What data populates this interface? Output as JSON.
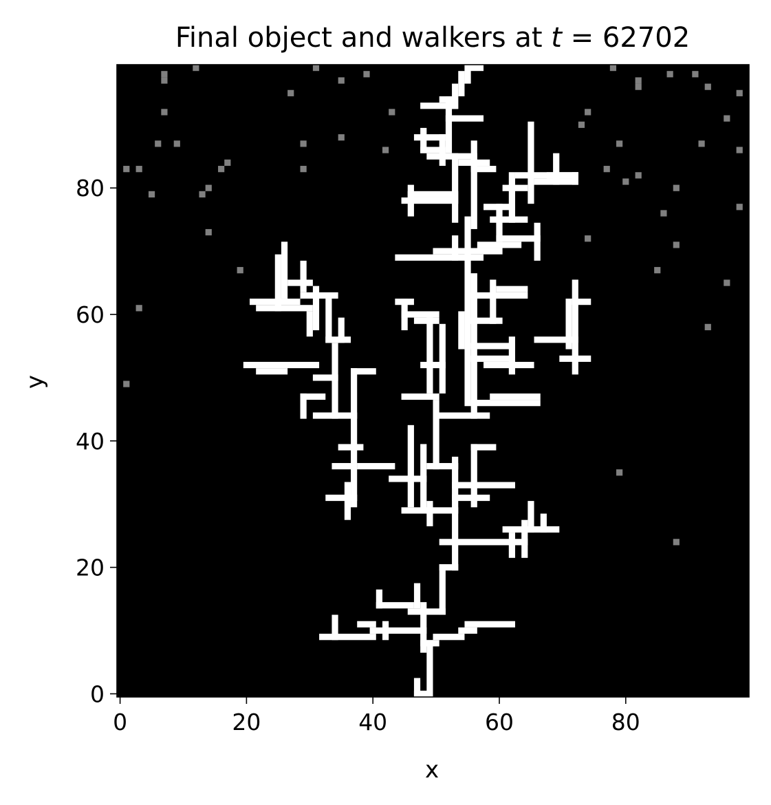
{
  "chart_data": {
    "type": "heatmap",
    "title_prefix": "Final object and walkers at ",
    "title_var": "t",
    "title_eq": " = 62702",
    "xlabel": "x",
    "ylabel": "y",
    "xlim": [
      -0.5,
      99.5
    ],
    "ylim": [
      -0.5,
      99.5
    ],
    "x_ticks": [
      0,
      20,
      40,
      60,
      80
    ],
    "y_ticks": [
      0,
      20,
      40,
      60,
      80
    ],
    "colors": {
      "background": "#000000",
      "object": "#ffffff",
      "walker": "#808080"
    },
    "object_segments": [
      {
        "orient": "v",
        "fixed": 49,
        "from": 0,
        "to": 8
      },
      {
        "orient": "v",
        "fixed": 47,
        "from": 0,
        "to": 2
      },
      {
        "orient": "h",
        "fixed": 0,
        "from": 47,
        "to": 49
      },
      {
        "orient": "v",
        "fixed": 48,
        "from": 7,
        "to": 14
      },
      {
        "orient": "h",
        "fixed": 8,
        "from": 48,
        "to": 50
      },
      {
        "orient": "h",
        "fixed": 9,
        "from": 50,
        "to": 54
      },
      {
        "orient": "h",
        "fixed": 10,
        "from": 54,
        "to": 56
      },
      {
        "orient": "h",
        "fixed": 11,
        "from": 55,
        "to": 62
      },
      {
        "orient": "h",
        "fixed": 9,
        "from": 32,
        "to": 40
      },
      {
        "orient": "h",
        "fixed": 10,
        "from": 40,
        "to": 48
      },
      {
        "orient": "v",
        "fixed": 34,
        "from": 9,
        "to": 12
      },
      {
        "orient": "h",
        "fixed": 11,
        "from": 38,
        "to": 40
      },
      {
        "orient": "v",
        "fixed": 42,
        "from": 9,
        "to": 11
      },
      {
        "orient": "h",
        "fixed": 13,
        "from": 46,
        "to": 51
      },
      {
        "orient": "h",
        "fixed": 14,
        "from": 41,
        "to": 46
      },
      {
        "orient": "v",
        "fixed": 41,
        "from": 14,
        "to": 16
      },
      {
        "orient": "v",
        "fixed": 47,
        "from": 14,
        "to": 17
      },
      {
        "orient": "v",
        "fixed": 51,
        "from": 13,
        "to": 20
      },
      {
        "orient": "h",
        "fixed": 20,
        "from": 51,
        "to": 53
      },
      {
        "orient": "v",
        "fixed": 53,
        "from": 20,
        "to": 37
      },
      {
        "orient": "h",
        "fixed": 24,
        "from": 51,
        "to": 64
      },
      {
        "orient": "h",
        "fixed": 26,
        "from": 61,
        "to": 69
      },
      {
        "orient": "v",
        "fixed": 64,
        "from": 22,
        "to": 27
      },
      {
        "orient": "v",
        "fixed": 62,
        "from": 22,
        "to": 25
      },
      {
        "orient": "v",
        "fixed": 65,
        "from": 26,
        "to": 30
      },
      {
        "orient": "v",
        "fixed": 67,
        "from": 26,
        "to": 28
      },
      {
        "orient": "h",
        "fixed": 29,
        "from": 45,
        "to": 53
      },
      {
        "orient": "v",
        "fixed": 49,
        "from": 27,
        "to": 30
      },
      {
        "orient": "v",
        "fixed": 48,
        "from": 29,
        "to": 39
      },
      {
        "orient": "h",
        "fixed": 34,
        "from": 43,
        "to": 48
      },
      {
        "orient": "h",
        "fixed": 36,
        "from": 38,
        "to": 43
      },
      {
        "orient": "v",
        "fixed": 46,
        "from": 30,
        "to": 42
      },
      {
        "orient": "h",
        "fixed": 36,
        "from": 49,
        "to": 53
      },
      {
        "orient": "v",
        "fixed": 50,
        "from": 36,
        "to": 46
      },
      {
        "orient": "h",
        "fixed": 44,
        "from": 50,
        "to": 58
      },
      {
        "orient": "h",
        "fixed": 46,
        "from": 56,
        "to": 66
      },
      {
        "orient": "v",
        "fixed": 56,
        "from": 44,
        "to": 66
      },
      {
        "orient": "h",
        "fixed": 47,
        "from": 45,
        "to": 50
      },
      {
        "orient": "h",
        "fixed": 33,
        "from": 53,
        "to": 62
      },
      {
        "orient": "v",
        "fixed": 56,
        "from": 30,
        "to": 39
      },
      {
        "orient": "h",
        "fixed": 39,
        "from": 56,
        "to": 59
      },
      {
        "orient": "h",
        "fixed": 31,
        "from": 53,
        "to": 58
      },
      {
        "orient": "v",
        "fixed": 37,
        "from": 30,
        "to": 51
      },
      {
        "orient": "h",
        "fixed": 31,
        "from": 33,
        "to": 37
      },
      {
        "orient": "v",
        "fixed": 36,
        "from": 28,
        "to": 33
      },
      {
        "orient": "h",
        "fixed": 36,
        "from": 34,
        "to": 37
      },
      {
        "orient": "h",
        "fixed": 39,
        "from": 35,
        "to": 38
      },
      {
        "orient": "h",
        "fixed": 51,
        "from": 37,
        "to": 40
      },
      {
        "orient": "h",
        "fixed": 44,
        "from": 31,
        "to": 37
      },
      {
        "orient": "h",
        "fixed": 47,
        "from": 29,
        "to": 32
      },
      {
        "orient": "v",
        "fixed": 29,
        "from": 44,
        "to": 47
      },
      {
        "orient": "h",
        "fixed": 52,
        "from": 20,
        "to": 31
      },
      {
        "orient": "h",
        "fixed": 51,
        "from": 22,
        "to": 26
      },
      {
        "orient": "h",
        "fixed": 50,
        "from": 31,
        "to": 34
      },
      {
        "orient": "v",
        "fixed": 34,
        "from": 44,
        "to": 55
      },
      {
        "orient": "h",
        "fixed": 56,
        "from": 33,
        "to": 36
      },
      {
        "orient": "v",
        "fixed": 33,
        "from": 56,
        "to": 62
      },
      {
        "orient": "h",
        "fixed": 62,
        "from": 21,
        "to": 28
      },
      {
        "orient": "h",
        "fixed": 61,
        "from": 22,
        "to": 30
      },
      {
        "orient": "v",
        "fixed": 25,
        "from": 61,
        "to": 69
      },
      {
        "orient": "v",
        "fixed": 26,
        "from": 63,
        "to": 71
      },
      {
        "orient": "h",
        "fixed": 65,
        "from": 27,
        "to": 30
      },
      {
        "orient": "v",
        "fixed": 29,
        "from": 64,
        "to": 68
      },
      {
        "orient": "h",
        "fixed": 63,
        "from": 29,
        "to": 34
      },
      {
        "orient": "v",
        "fixed": 31,
        "from": 58,
        "to": 64
      },
      {
        "orient": "v",
        "fixed": 30,
        "from": 57,
        "to": 60
      },
      {
        "orient": "v",
        "fixed": 35,
        "from": 56,
        "to": 59
      },
      {
        "orient": "v",
        "fixed": 55,
        "from": 46,
        "to": 75
      },
      {
        "orient": "v",
        "fixed": 54,
        "from": 55,
        "to": 60
      },
      {
        "orient": "h",
        "fixed": 55,
        "from": 56,
        "to": 62
      },
      {
        "orient": "h",
        "fixed": 53,
        "from": 56,
        "to": 62
      },
      {
        "orient": "h",
        "fixed": 52,
        "from": 58,
        "to": 65
      },
      {
        "orient": "v",
        "fixed": 62,
        "from": 51,
        "to": 56
      },
      {
        "orient": "h",
        "fixed": 56,
        "from": 66,
        "to": 72
      },
      {
        "orient": "h",
        "fixed": 53,
        "from": 70,
        "to": 74
      },
      {
        "orient": "v",
        "fixed": 72,
        "from": 51,
        "to": 65
      },
      {
        "orient": "h",
        "fixed": 62,
        "from": 72,
        "to": 74
      },
      {
        "orient": "v",
        "fixed": 71,
        "from": 55,
        "to": 62
      },
      {
        "orient": "h",
        "fixed": 47,
        "from": 59,
        "to": 66
      },
      {
        "orient": "v",
        "fixed": 51,
        "from": 48,
        "to": 58
      },
      {
        "orient": "h",
        "fixed": 52,
        "from": 48,
        "to": 51
      },
      {
        "orient": "v",
        "fixed": 49,
        "from": 48,
        "to": 59
      },
      {
        "orient": "h",
        "fixed": 59,
        "from": 47,
        "to": 50
      },
      {
        "orient": "h",
        "fixed": 60,
        "from": 45,
        "to": 50
      },
      {
        "orient": "v",
        "fixed": 45,
        "from": 58,
        "to": 62
      },
      {
        "orient": "h",
        "fixed": 62,
        "from": 44,
        "to": 46
      },
      {
        "orient": "v",
        "fixed": 56,
        "from": 59,
        "to": 66
      },
      {
        "orient": "h",
        "fixed": 59,
        "from": 56,
        "to": 60
      },
      {
        "orient": "v",
        "fixed": 59,
        "from": 59,
        "to": 65
      },
      {
        "orient": "h",
        "fixed": 63,
        "from": 56,
        "to": 64
      },
      {
        "orient": "h",
        "fixed": 64,
        "from": 60,
        "to": 64
      },
      {
        "orient": "h",
        "fixed": 69,
        "from": 44,
        "to": 57
      },
      {
        "orient": "h",
        "fixed": 70,
        "from": 50,
        "to": 60
      },
      {
        "orient": "v",
        "fixed": 53,
        "from": 69,
        "to": 72
      },
      {
        "orient": "h",
        "fixed": 71,
        "from": 57,
        "to": 63
      },
      {
        "orient": "v",
        "fixed": 53,
        "from": 75,
        "to": 85
      },
      {
        "orient": "h",
        "fixed": 78,
        "from": 45,
        "to": 53
      },
      {
        "orient": "v",
        "fixed": 46,
        "from": 76,
        "to": 80
      },
      {
        "orient": "h",
        "fixed": 79,
        "from": 46,
        "to": 53
      },
      {
        "orient": "h",
        "fixed": 75,
        "from": 59,
        "to": 64
      },
      {
        "orient": "h",
        "fixed": 72,
        "from": 60,
        "to": 66
      },
      {
        "orient": "v",
        "fixed": 66,
        "from": 69,
        "to": 74
      },
      {
        "orient": "v",
        "fixed": 60,
        "from": 72,
        "to": 77
      },
      {
        "orient": "h",
        "fixed": 77,
        "from": 58,
        "to": 62
      },
      {
        "orient": "v",
        "fixed": 62,
        "from": 75,
        "to": 82
      },
      {
        "orient": "h",
        "fixed": 80,
        "from": 61,
        "to": 64
      },
      {
        "orient": "h",
        "fixed": 82,
        "from": 63,
        "to": 72
      },
      {
        "orient": "h",
        "fixed": 81,
        "from": 66,
        "to": 72
      },
      {
        "orient": "v",
        "fixed": 65,
        "from": 78,
        "to": 90
      },
      {
        "orient": "v",
        "fixed": 69,
        "from": 81,
        "to": 85
      },
      {
        "orient": "h",
        "fixed": 82,
        "from": 68,
        "to": 72
      },
      {
        "orient": "v",
        "fixed": 72,
        "from": 81,
        "to": 82
      },
      {
        "orient": "v",
        "fixed": 56,
        "from": 74,
        "to": 87
      },
      {
        "orient": "h",
        "fixed": 83,
        "from": 56,
        "to": 59
      },
      {
        "orient": "h",
        "fixed": 85,
        "from": 49,
        "to": 56
      },
      {
        "orient": "h",
        "fixed": 84,
        "from": 54,
        "to": 58
      },
      {
        "orient": "v",
        "fixed": 51,
        "from": 84,
        "to": 88
      },
      {
        "orient": "h",
        "fixed": 88,
        "from": 47,
        "to": 51
      },
      {
        "orient": "v",
        "fixed": 48,
        "from": 86,
        "to": 89
      },
      {
        "orient": "h",
        "fixed": 86,
        "from": 48,
        "to": 51
      },
      {
        "orient": "v",
        "fixed": 52,
        "from": 86,
        "to": 94
      },
      {
        "orient": "h",
        "fixed": 91,
        "from": 52,
        "to": 57
      },
      {
        "orient": "h",
        "fixed": 93,
        "from": 48,
        "to": 53
      },
      {
        "orient": "v",
        "fixed": 53,
        "from": 93,
        "to": 96
      },
      {
        "orient": "v",
        "fixed": 54,
        "from": 95,
        "to": 98
      },
      {
        "orient": "v",
        "fixed": 55,
        "from": 97,
        "to": 99
      },
      {
        "orient": "h",
        "fixed": 99,
        "from": 55,
        "to": 57
      },
      {
        "orient": "h",
        "fixed": 94,
        "from": 51,
        "to": 53
      }
    ],
    "walkers": [
      [
        7,
        98
      ],
      [
        7,
        97
      ],
      [
        12,
        99
      ],
      [
        31,
        99
      ],
      [
        35,
        97
      ],
      [
        39,
        98
      ],
      [
        27,
        95
      ],
      [
        43,
        92
      ],
      [
        7,
        92
      ],
      [
        35,
        88
      ],
      [
        29,
        87
      ],
      [
        6,
        87
      ],
      [
        9,
        87
      ],
      [
        17,
        84
      ],
      [
        16,
        83
      ],
      [
        1,
        83
      ],
      [
        3,
        83
      ],
      [
        29,
        83
      ],
      [
        42,
        86
      ],
      [
        14,
        80
      ],
      [
        13,
        79
      ],
      [
        5,
        79
      ],
      [
        14,
        73
      ],
      [
        19,
        67
      ],
      [
        3,
        61
      ],
      [
        1,
        49
      ],
      [
        73,
        90
      ],
      [
        74,
        92
      ],
      [
        78,
        99
      ],
      [
        87,
        98
      ],
      [
        91,
        98
      ],
      [
        93,
        96
      ],
      [
        82,
        96
      ],
      [
        82,
        97
      ],
      [
        98,
        95
      ],
      [
        96,
        91
      ],
      [
        98,
        86
      ],
      [
        92,
        87
      ],
      [
        79,
        87
      ],
      [
        77,
        83
      ],
      [
        82,
        82
      ],
      [
        80,
        81
      ],
      [
        88,
        80
      ],
      [
        98,
        77
      ],
      [
        86,
        76
      ],
      [
        88,
        71
      ],
      [
        74,
        72
      ],
      [
        85,
        67
      ],
      [
        96,
        65
      ],
      [
        93,
        58
      ],
      [
        79,
        35
      ],
      [
        88,
        24
      ]
    ]
  }
}
